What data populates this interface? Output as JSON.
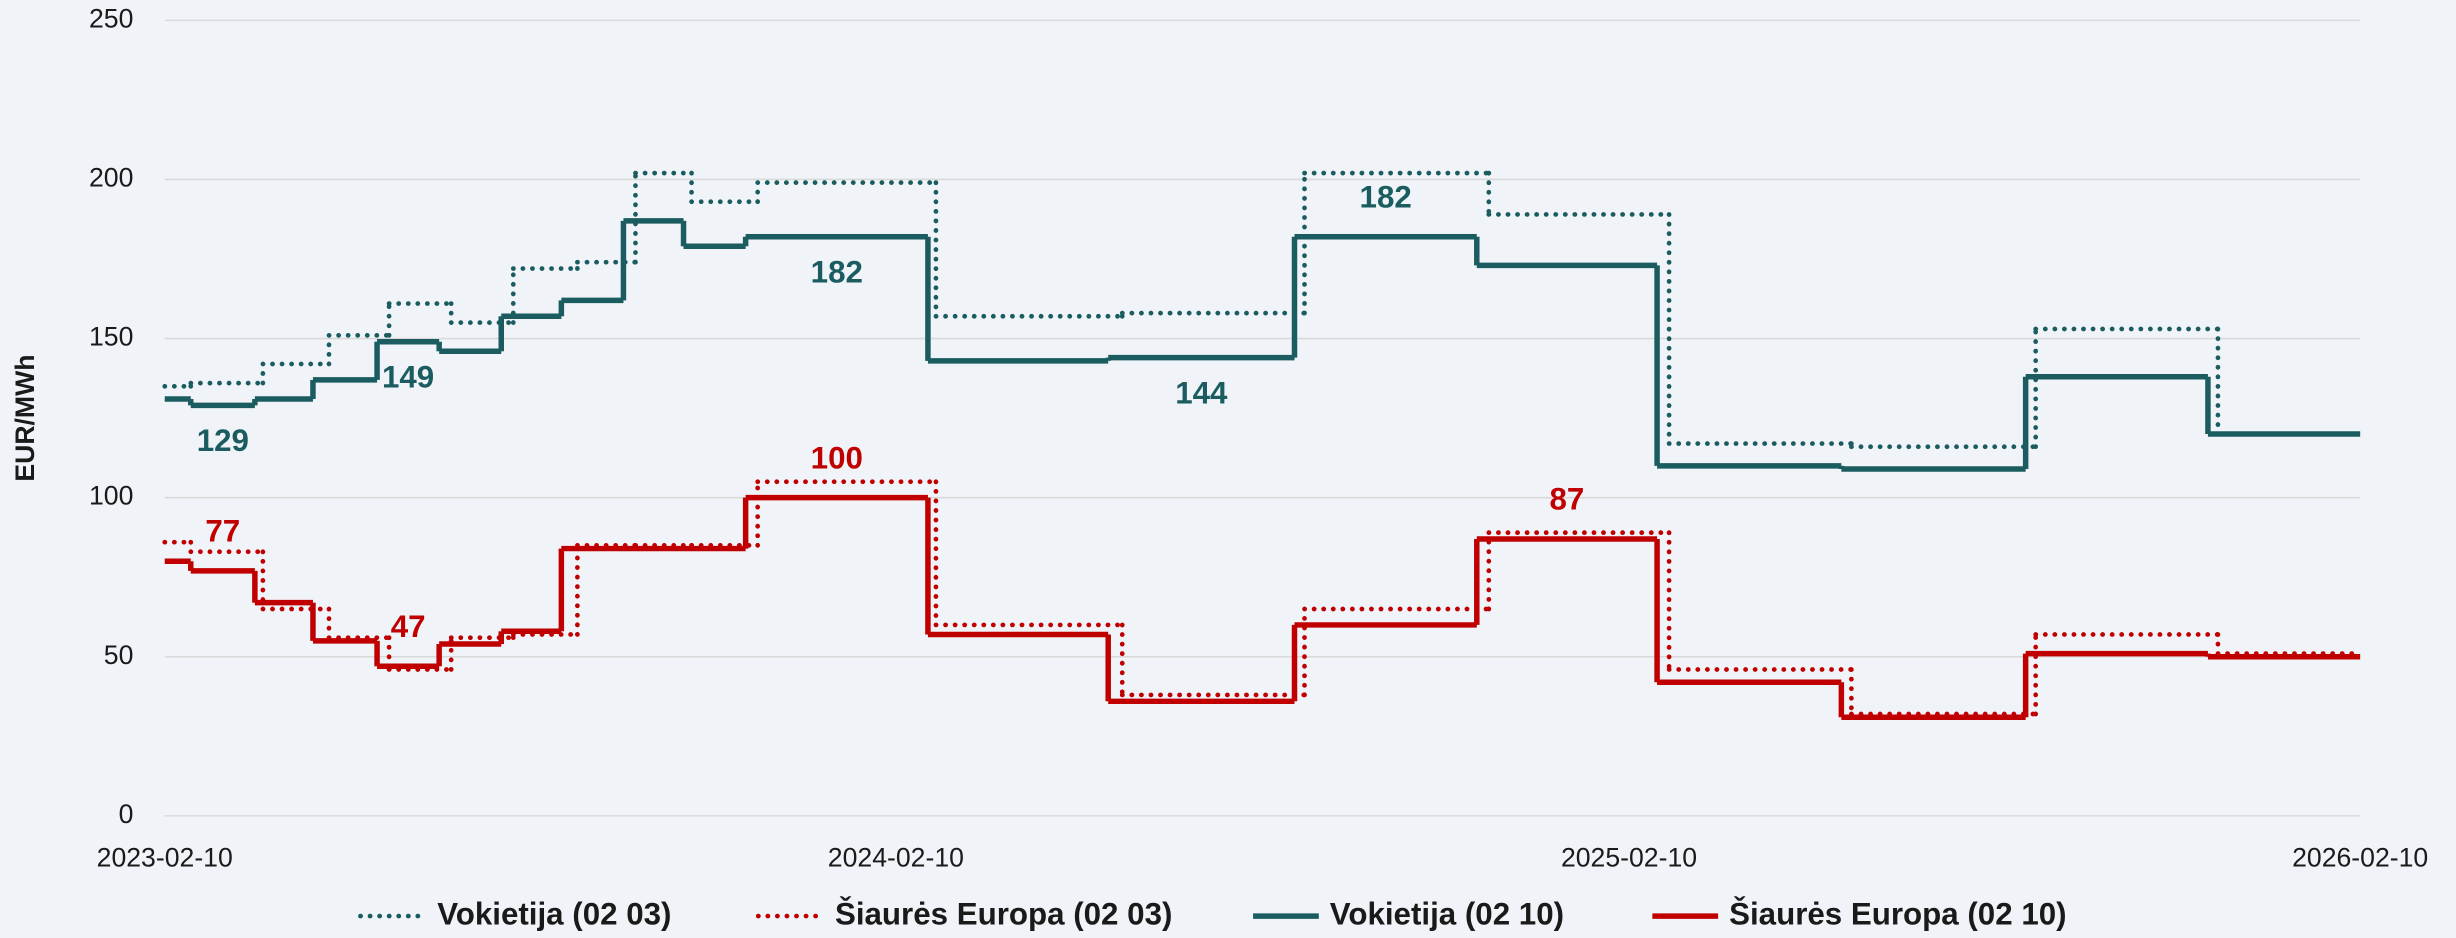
{
  "chart_data": {
    "type": "step",
    "y_label": "EUR/MWh",
    "xlim": [
      "2023-02-10",
      "2026-02-10"
    ],
    "xticks": [
      "2023-02-10",
      "2024-02-10",
      "2025-02-10",
      "2026-02-10"
    ],
    "ylim": [
      0,
      250
    ],
    "yticks": [
      0,
      50,
      100,
      150,
      200,
      250
    ],
    "grid": true,
    "legend": "bottom",
    "series": [
      {
        "name": "Vokietija (02 03)",
        "color": "#1b5c60",
        "line_style": "dotted",
        "x": [
          "2023-02-10",
          "2023-02-23",
          "2023-03-31",
          "2023-05-03",
          "2023-06-02",
          "2023-07-03",
          "2023-08-03",
          "2023-09-04",
          "2023-10-03",
          "2023-10-31",
          "2023-12-03",
          "2024-03-01",
          "2024-06-02",
          "2024-09-01",
          "2024-12-02",
          "2025-03-02",
          "2025-06-01",
          "2025-09-01",
          "2025-12-01"
        ],
        "values": [
          135,
          136,
          142,
          151,
          161,
          155,
          172,
          174,
          202,
          193,
          199,
          157,
          158,
          202,
          189,
          117,
          116,
          153,
          120
        ]
      },
      {
        "name": "Šiaurės Europa (02 03)",
        "color": "#c00000",
        "line_style": "dotted",
        "x": [
          "2023-02-10",
          "2023-02-23",
          "2023-03-31",
          "2023-05-03",
          "2023-06-02",
          "2023-07-03",
          "2023-08-03",
          "2023-09-04",
          "2023-10-03",
          "2023-10-31",
          "2023-12-03",
          "2024-03-01",
          "2024-06-02",
          "2024-09-01",
          "2024-12-02",
          "2025-03-02",
          "2025-06-01",
          "2025-09-01",
          "2025-12-01"
        ],
        "values": [
          86,
          83,
          65,
          56,
          46,
          56,
          57,
          85,
          85,
          85,
          105,
          60,
          38,
          65,
          89,
          46,
          32,
          57,
          51
        ]
      },
      {
        "name": "Vokietija (02 10)",
        "color": "#1b5c60",
        "line_style": "solid",
        "x": [
          "2023-02-10",
          "2023-02-23",
          "2023-03-27",
          "2023-04-25",
          "2023-05-27",
          "2023-06-27",
          "2023-07-28",
          "2023-08-27",
          "2023-09-27",
          "2023-10-27",
          "2023-11-27",
          "2024-02-26",
          "2024-05-26",
          "2024-08-27",
          "2024-11-26",
          "2025-02-24",
          "2025-05-27",
          "2025-08-27",
          "2025-11-26"
        ],
        "values": [
          131,
          129,
          131,
          137,
          149,
          146,
          157,
          162,
          187,
          179,
          182,
          143,
          144,
          182,
          173,
          110,
          109,
          138,
          120
        ],
        "value_labels": [
          null,
          "129",
          null,
          null,
          "149",
          null,
          null,
          null,
          null,
          null,
          "182",
          null,
          "144",
          "182",
          null,
          null,
          null,
          null,
          null
        ]
      },
      {
        "name": "Šiaurės Europa (02 10)",
        "color": "#c00000",
        "line_style": "solid",
        "x": [
          "2023-02-10",
          "2023-02-23",
          "2023-03-27",
          "2023-04-25",
          "2023-05-27",
          "2023-06-27",
          "2023-07-28",
          "2023-08-27",
          "2023-09-27",
          "2023-10-27",
          "2023-11-27",
          "2024-02-26",
          "2024-05-26",
          "2024-08-27",
          "2024-11-26",
          "2025-02-24",
          "2025-05-27",
          "2025-08-27",
          "2025-11-26"
        ],
        "values": [
          80,
          77,
          67,
          55,
          47,
          54,
          58,
          84,
          84,
          84,
          100,
          57,
          36,
          60,
          87,
          42,
          31,
          51,
          50
        ],
        "value_labels": [
          null,
          "77",
          null,
          null,
          "47",
          null,
          null,
          null,
          null,
          null,
          "100",
          null,
          null,
          null,
          "87",
          null,
          null,
          null,
          null
        ]
      }
    ]
  }
}
